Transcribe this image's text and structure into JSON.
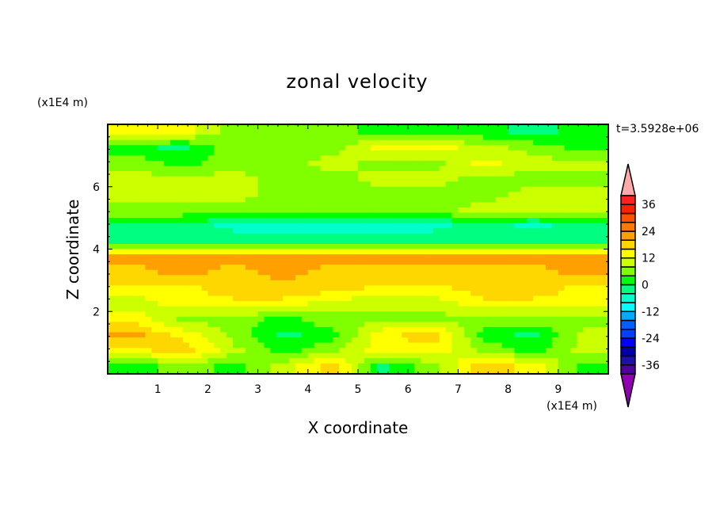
{
  "chart_data": {
    "type": "heatmap",
    "title": "zonal velocity",
    "xlabel": "X coordinate",
    "ylabel": "Z coordinate",
    "x_unit_label": "(x1E4 m)",
    "y_unit_label": "(x1E4 m)",
    "time_label": "t=3.5928e+06",
    "xlim": [
      0,
      10
    ],
    "ylim": [
      0,
      8
    ],
    "xticks": [
      1,
      2,
      3,
      4,
      5,
      6,
      7,
      8,
      9
    ],
    "yticks": [
      2,
      4,
      6
    ],
    "x_centers": [
      0.5,
      1.5,
      2.5,
      3.5,
      4.5,
      5.5,
      6.5,
      7.5,
      8.5,
      9.5
    ],
    "z_centers": [
      7.75,
      7.25,
      6.75,
      6.25,
      5.75,
      5.25,
      4.75,
      4.25,
      3.75,
      3.25,
      2.75,
      2.25,
      1.75,
      1.25,
      0.75,
      0.25
    ],
    "values": [
      [
        5,
        4,
        -1,
        -1,
        -1,
        -5,
        -5,
        -5,
        -7,
        -5
      ],
      [
        -5,
        -7,
        -1,
        -1,
        -1,
        4,
        5,
        1,
        -1,
        -4
      ],
      [
        -1,
        -4,
        -1,
        -1,
        1,
        -1,
        -1,
        4,
        1,
        1
      ],
      [
        1,
        1,
        1,
        -1,
        -1,
        1,
        1,
        -1,
        -1,
        -1
      ],
      [
        1,
        1,
        1,
        -1,
        -1,
        -1,
        -1,
        -1,
        1,
        1
      ],
      [
        -1,
        -1,
        -1,
        -1,
        -1,
        -1,
        -1,
        1,
        1,
        1
      ],
      [
        -7,
        -7,
        -10,
        -10,
        -10,
        -10,
        -10,
        -7,
        -10,
        -7
      ],
      [
        -7,
        -7,
        -7,
        -7,
        -7,
        -7,
        -7,
        -7,
        -7,
        -7
      ],
      [
        10,
        10,
        10,
        10,
        10,
        10,
        10,
        10,
        10,
        10
      ],
      [
        8,
        10,
        8,
        10,
        8,
        8,
        8,
        8,
        8,
        10
      ],
      [
        5,
        5,
        8,
        8,
        8,
        5,
        5,
        8,
        8,
        5
      ],
      [
        1,
        5,
        5,
        5,
        1,
        1,
        1,
        5,
        5,
        5
      ],
      [
        5,
        -1,
        -1,
        -4,
        -1,
        -1,
        -1,
        -1,
        -1,
        -1
      ],
      [
        10,
        5,
        -1,
        -7,
        -4,
        5,
        8,
        -4,
        -7,
        1
      ],
      [
        5,
        8,
        1,
        -4,
        -1,
        5,
        5,
        -1,
        -4,
        1
      ],
      [
        -5,
        -1,
        -4,
        1,
        8,
        -7,
        -1,
        8,
        5,
        -4
      ]
    ],
    "colorbar": {
      "levels": [
        -36,
        -33,
        -30,
        -27,
        -24,
        -21,
        -18,
        -15,
        -12,
        -9,
        -6,
        -3,
        0,
        3,
        6,
        9,
        12,
        15,
        18,
        21,
        24,
        27,
        30,
        33,
        36
      ],
      "tick_labels": [
        "36",
        "24",
        "12",
        "0",
        "-12",
        "-24",
        "-36"
      ],
      "tick_values": [
        36,
        24,
        12,
        0,
        -12,
        -24,
        -36
      ],
      "colors": [
        "#5000a0",
        "#2010aa",
        "#0000aa",
        "#0000ff",
        "#0040ff",
        "#0060ff",
        "#00aaff",
        "#00ffff",
        "#00ffcc",
        "#00ff80",
        "#00ff00",
        "#80ff00",
        "#ccff00",
        "#ffff00",
        "#ffd700",
        "#ffa000",
        "#ff7800",
        "#ff5000",
        "#ff2000",
        "#ff2020"
      ],
      "under_color": "#9000b0",
      "over_color": "#ffaaaa"
    },
    "grid": false
  }
}
